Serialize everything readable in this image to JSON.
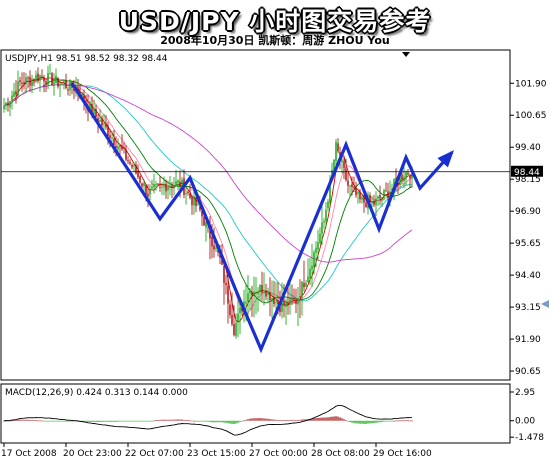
{
  "header": {
    "title": "USD/JPY 小时图交易参考",
    "subtitle": "2008年10月30日  凯斯顿：周游 ZHOU You"
  },
  "chart_data": [
    {
      "type": "candlestick",
      "title": "USDJPY,H1  98.51 98.52 98.32 98.44",
      "ylim": [
        90.3,
        103.2
      ],
      "y_ticks": [
        "101.90",
        "100.65",
        "99.40",
        "98.15",
        "96.90",
        "95.65",
        "94.40",
        "93.15",
        "91.90",
        "90.65"
      ],
      "y_tick_values": [
        101.9,
        100.65,
        99.4,
        98.15,
        96.9,
        95.65,
        94.4,
        93.15,
        91.9,
        90.65
      ],
      "current_price_label": "98.44",
      "current_price": 98.44,
      "x_ticks": [
        "17 Oct 2008",
        "20 Oct 23:00",
        "22 Oct 07:00",
        "23 Oct 15:00",
        "27 Oct 00:00",
        "28 Oct 08:00",
        "29 Oct 16:00"
      ],
      "x_tick_bars": [
        0,
        31,
        62,
        93,
        124,
        155,
        186
      ],
      "bar_count": 205,
      "price_anchors": [
        [
          0,
          101.0
        ],
        [
          8,
          101.9
        ],
        [
          18,
          102.2
        ],
        [
          28,
          101.9
        ],
        [
          36,
          101.7
        ],
        [
          44,
          100.8
        ],
        [
          56,
          99.6
        ],
        [
          66,
          98.4
        ],
        [
          72,
          97.6
        ],
        [
          80,
          97.9
        ],
        [
          88,
          98.0
        ],
        [
          98,
          96.9
        ],
        [
          108,
          95.0
        ],
        [
          115,
          92.3
        ],
        [
          122,
          93.8
        ],
        [
          130,
          93.9
        ],
        [
          138,
          93.2
        ],
        [
          146,
          93.4
        ],
        [
          152,
          94.5
        ],
        [
          160,
          96.5
        ],
        [
          166,
          99.4
        ],
        [
          172,
          97.9
        ],
        [
          178,
          97.3
        ],
        [
          185,
          97.2
        ],
        [
          194,
          97.8
        ],
        [
          200,
          98.4
        ],
        [
          204,
          98.44
        ]
      ],
      "moving_average_periods": [
        5,
        10,
        20,
        40,
        80
      ],
      "moving_average_colors": [
        "#e00000",
        "#ff88aa",
        "#008000",
        "#20c8c8",
        "#cc44cc"
      ],
      "annotation_path": [
        [
          72,
          101.9
        ],
        [
          160,
          96.6
        ],
        [
          190,
          98.2
        ],
        [
          237,
          93.7
        ],
        [
          261,
          91.5
        ],
        [
          346,
          99.5
        ],
        [
          379,
          96.2
        ],
        [
          406,
          99.0
        ],
        [
          420,
          97.8
        ],
        [
          452,
          99.2
        ]
      ],
      "annotation_color": "#1a2fd1"
    },
    {
      "type": "bar",
      "title": "MACD(12,26,9) 0.424 0.313 0.144 0.000",
      "y_ticks": [
        "2.95",
        "0.00",
        "-1.478"
      ],
      "y_tick_values": [
        2.95,
        0.0,
        -1.478
      ],
      "ylim": [
        -2.0,
        3.3
      ],
      "signal_color": "#000000"
    }
  ],
  "colors": {
    "accent": "#1a2fd1",
    "grid_line": "#000000",
    "bull": "#00a000",
    "bear": "#a00000"
  }
}
